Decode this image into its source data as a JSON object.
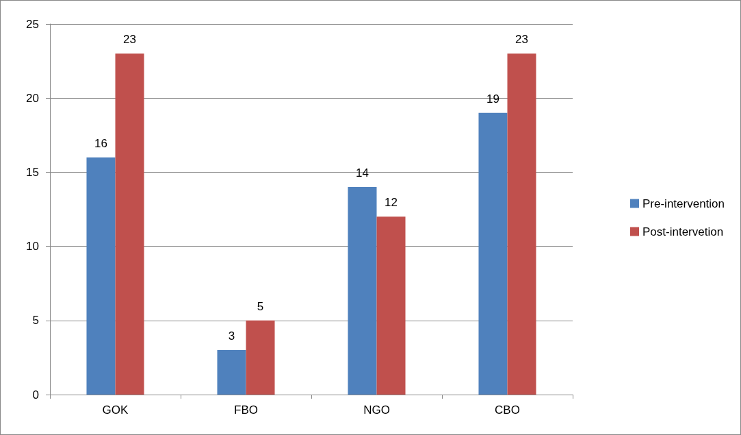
{
  "chart_data": {
    "type": "bar",
    "categories": [
      "GOK",
      "FBO",
      "NGO",
      "CBO"
    ],
    "series": [
      {
        "name": "Pre-intervention",
        "color": "#4f81bd",
        "values": [
          16,
          3,
          14,
          19
        ]
      },
      {
        "name": "Post-intervetion",
        "color": "#c0504d",
        "values": [
          23,
          5,
          12,
          23
        ]
      }
    ],
    "ylim": [
      0,
      25
    ],
    "yticks": [
      0,
      5,
      10,
      15,
      20,
      25
    ],
    "grid": "y",
    "legend": "right",
    "data_labels": true
  }
}
